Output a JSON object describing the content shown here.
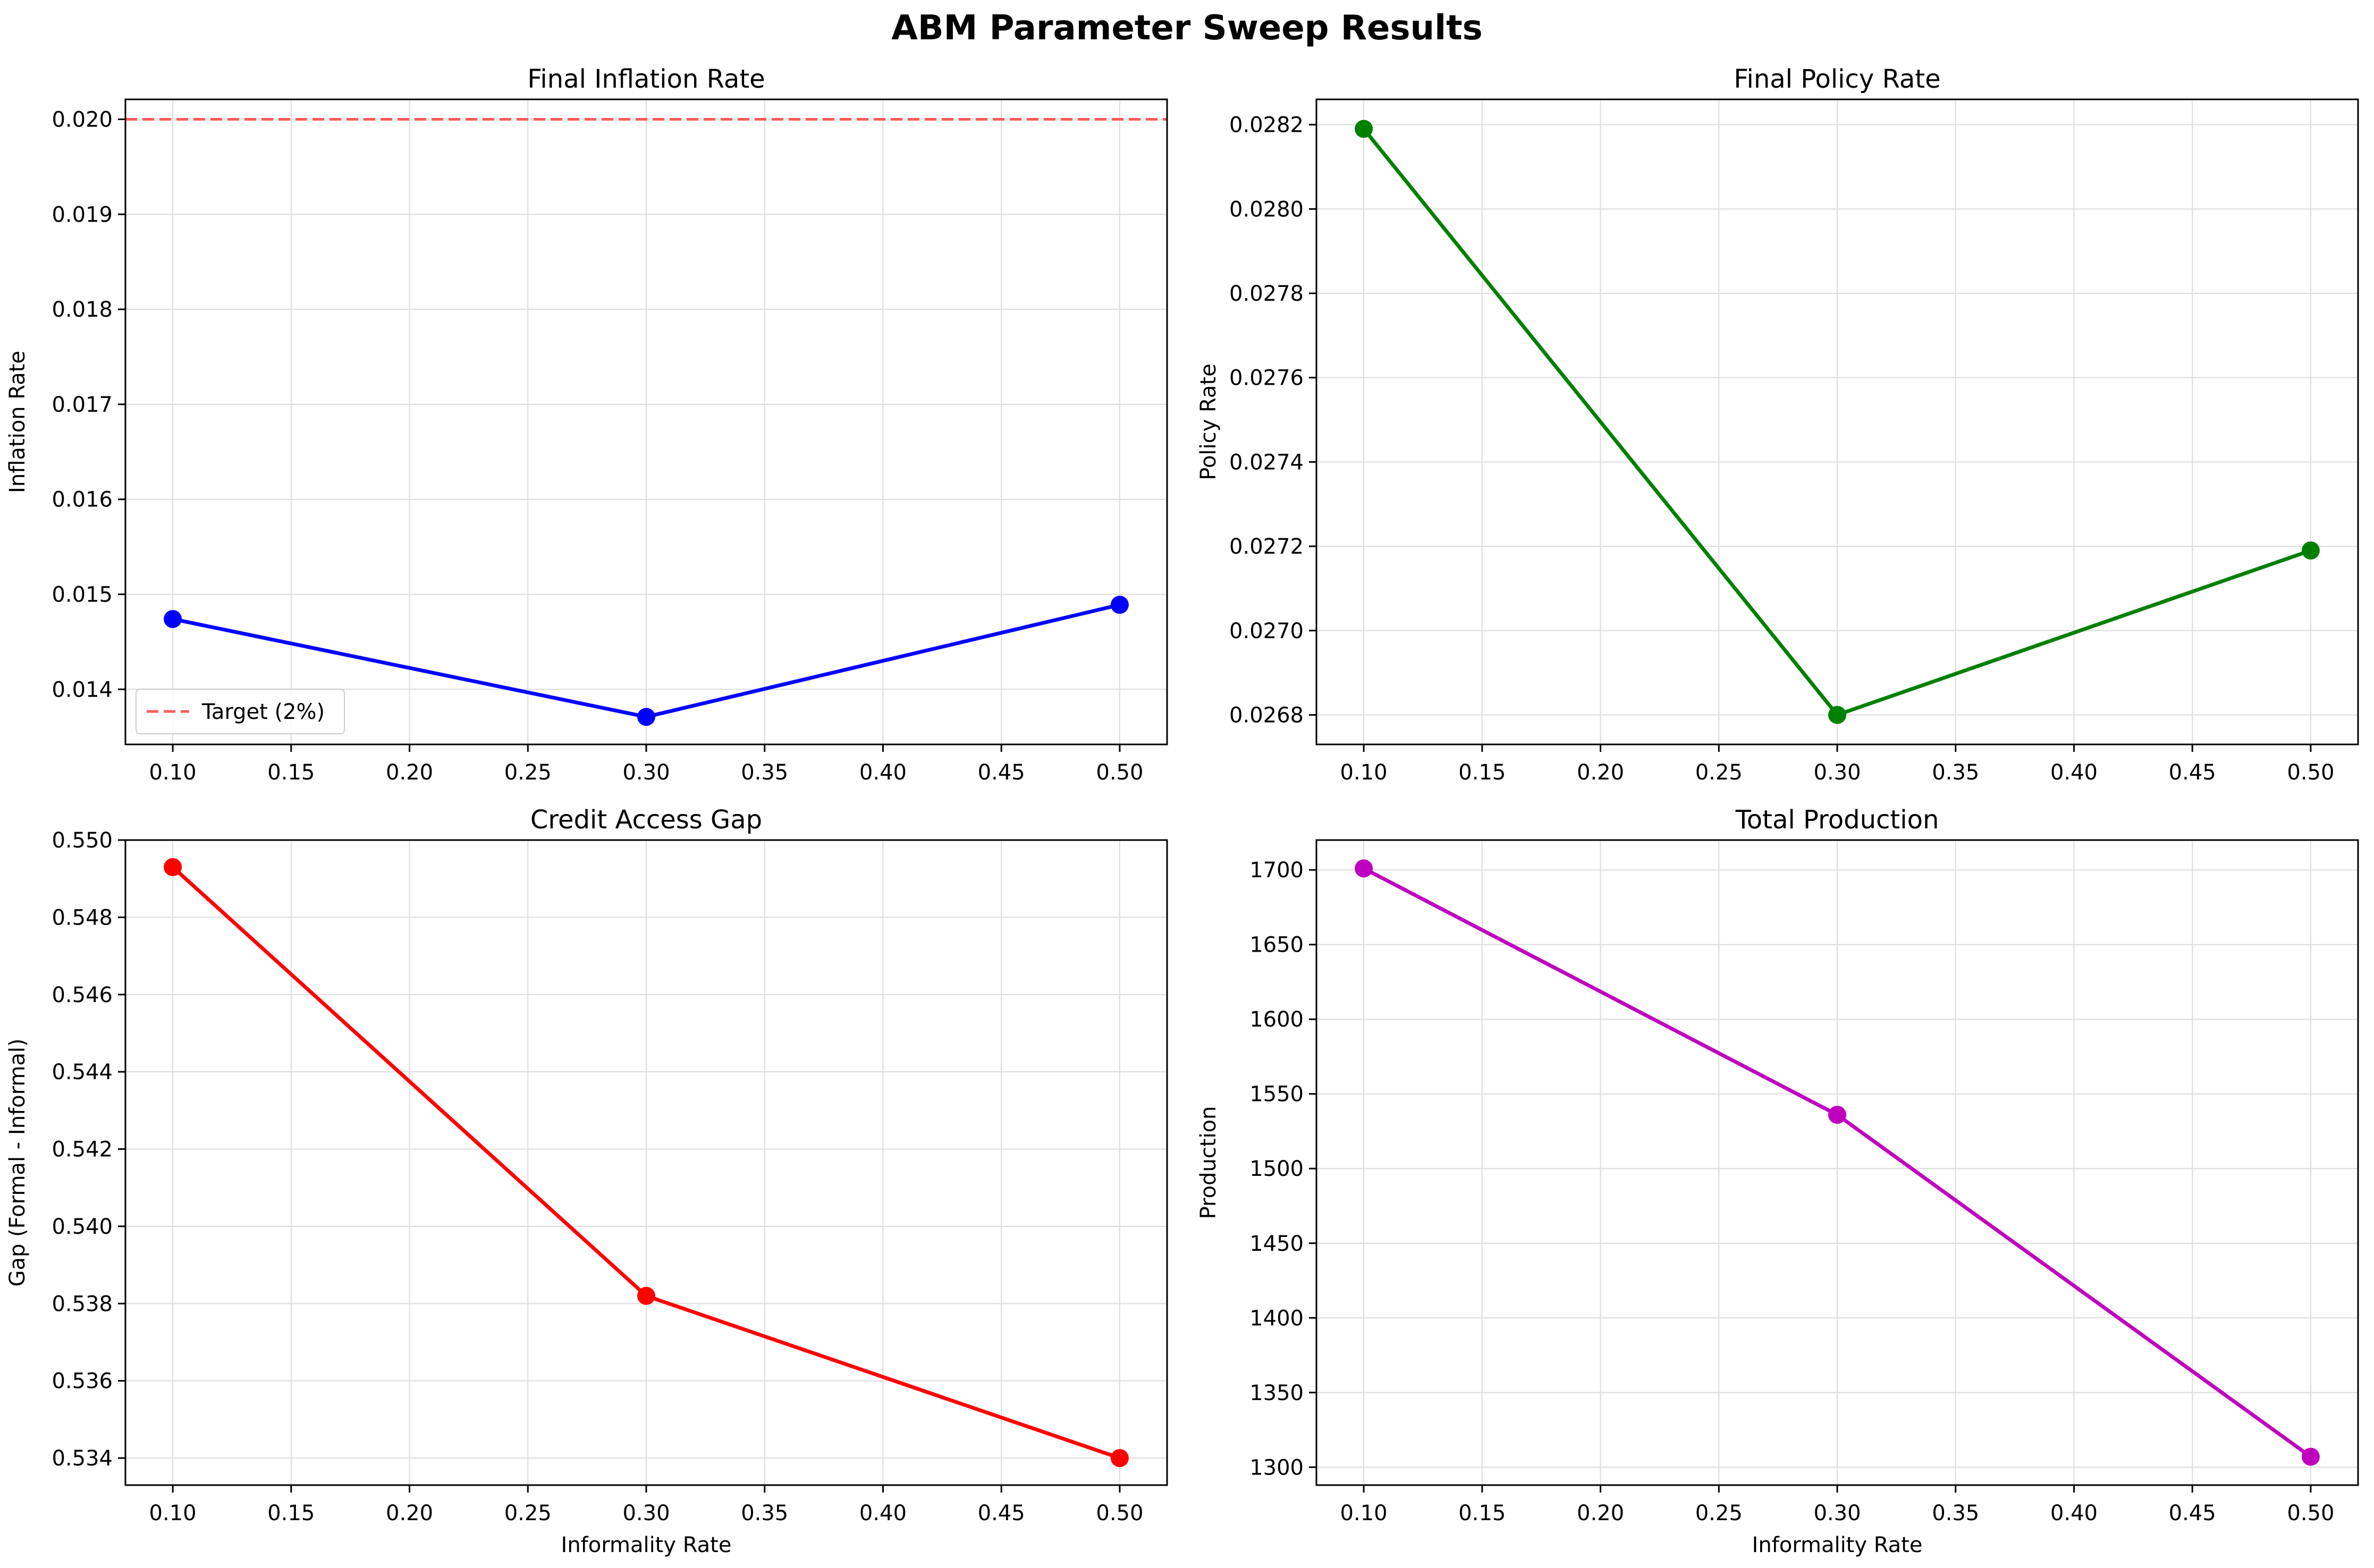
{
  "figure": {
    "title": "ABM Parameter Sweep Results"
  },
  "chart_data": [
    {
      "type": "line",
      "title": "Final Inflation Rate",
      "xlabel": "",
      "ylabel": "Inflation Rate",
      "xlim": [
        0.08,
        0.52
      ],
      "ylim": [
        0.01342,
        0.02021
      ],
      "x_ticks": [
        "0.10",
        "0.15",
        "0.20",
        "0.25",
        "0.30",
        "0.35",
        "0.40",
        "0.45",
        "0.50"
      ],
      "y_ticks": [
        "0.014",
        "0.015",
        "0.016",
        "0.017",
        "0.018",
        "0.019",
        "0.020"
      ],
      "grid": true,
      "series": [
        {
          "x": [
            0.1,
            0.3,
            0.5
          ],
          "y": [
            0.01474,
            0.01371,
            0.01489
          ],
          "color": "#0000ff",
          "marker": "circle"
        }
      ],
      "reference_lines": [
        {
          "name": "Target (2%)",
          "y": 0.02,
          "color": "#ff4040",
          "style": "dashed"
        }
      ],
      "legend": {
        "position": "lower-left",
        "entries": [
          "Target (2%)"
        ]
      }
    },
    {
      "type": "line",
      "title": "Final Policy Rate",
      "xlabel": "",
      "ylabel": "Policy Rate",
      "xlim": [
        0.08,
        0.52
      ],
      "ylim": [
        0.02673,
        0.02826
      ],
      "x_ticks": [
        "0.10",
        "0.15",
        "0.20",
        "0.25",
        "0.30",
        "0.35",
        "0.40",
        "0.45",
        "0.50"
      ],
      "y_ticks": [
        "0.0268",
        "0.0270",
        "0.0272",
        "0.0274",
        "0.0276",
        "0.0278",
        "0.0280",
        "0.0282"
      ],
      "grid": true,
      "series": [
        {
          "x": [
            0.1,
            0.3,
            0.5
          ],
          "y": [
            0.02819,
            0.0268,
            0.02719
          ],
          "color": "#008000",
          "marker": "circle"
        }
      ]
    },
    {
      "type": "line",
      "title": "Credit Access Gap",
      "xlabel": "Informality Rate",
      "ylabel": "Gap (Formal - Informal)",
      "xlim": [
        0.08,
        0.52
      ],
      "ylim": [
        0.5333,
        0.55
      ],
      "x_ticks": [
        "0.10",
        "0.15",
        "0.20",
        "0.25",
        "0.30",
        "0.35",
        "0.40",
        "0.45",
        "0.50"
      ],
      "y_ticks": [
        "0.534",
        "0.536",
        "0.538",
        "0.540",
        "0.542",
        "0.544",
        "0.546",
        "0.548",
        "0.550"
      ],
      "grid": true,
      "series": [
        {
          "x": [
            0.1,
            0.3,
            0.5
          ],
          "y": [
            0.5493,
            0.5382,
            0.534
          ],
          "color": "#ff0000",
          "marker": "circle"
        }
      ]
    },
    {
      "type": "line",
      "title": "Total Production",
      "xlabel": "Informality Rate",
      "ylabel": "Production",
      "xlim": [
        0.08,
        0.52
      ],
      "ylim": [
        1288,
        1720
      ],
      "x_ticks": [
        "0.10",
        "0.15",
        "0.20",
        "0.25",
        "0.30",
        "0.35",
        "0.40",
        "0.45",
        "0.50"
      ],
      "y_ticks": [
        "1300",
        "1350",
        "1400",
        "1450",
        "1500",
        "1550",
        "1600",
        "1650",
        "1700"
      ],
      "grid": true,
      "series": [
        {
          "x": [
            0.1,
            0.3,
            0.5
          ],
          "y": [
            1701,
            1536,
            1307
          ],
          "color": "#bf00bf",
          "marker": "circle"
        }
      ]
    }
  ]
}
